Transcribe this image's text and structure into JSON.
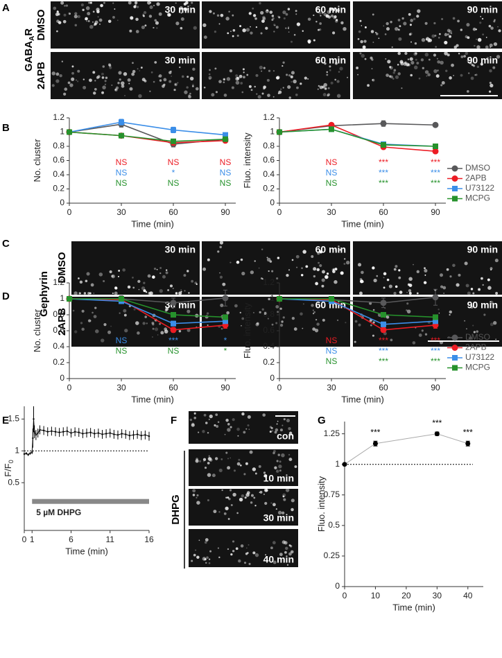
{
  "panel_letters": [
    "A",
    "B",
    "C",
    "D",
    "E",
    "F",
    "G"
  ],
  "figure_a": {
    "marker_label": {
      "main": "GABA",
      "sub": "A",
      "tail": "R"
    },
    "rows": [
      {
        "condition": "DMSO",
        "images": [
          "30 min",
          "60 min",
          "90 min"
        ]
      },
      {
        "condition": "2APB",
        "images": [
          "30 min",
          "60 min",
          "90 min"
        ]
      }
    ]
  },
  "figure_c": {
    "marker_label": "Gephyrin",
    "rows": [
      {
        "condition": "DMSO",
        "images": [
          "30 min",
          "60 min",
          "90 min"
        ]
      },
      {
        "condition": "2APB",
        "images": [
          "30 min",
          "60 min",
          "90 min"
        ]
      }
    ]
  },
  "figure_f": {
    "group_label": "DHPG",
    "images": [
      "con",
      "10 min",
      "30 min",
      "40 min"
    ]
  },
  "chart_data": [
    {
      "type": "line",
      "xlabel": "Time (min)",
      "ylabel": "No. cluster",
      "legend": false,
      "x": [
        0,
        30,
        60,
        90
      ],
      "xlim": [
        0,
        96
      ],
      "xticks": [
        0,
        30,
        60,
        90
      ],
      "ylim": [
        0,
        1.2
      ],
      "yticks": [
        0,
        0.2,
        0.4,
        0.6,
        0.8,
        1,
        1.2
      ],
      "series": [
        {
          "name": "DMSO",
          "color": "#58585a",
          "marker": "circle",
          "values": [
            1,
            1.11,
            0.83,
            0.9
          ],
          "errors": [
            0.02,
            0.04,
            0.04,
            0.03
          ]
        },
        {
          "name": "2APB",
          "color": "#ec1c24",
          "marker": "circle",
          "values": [
            1,
            0.95,
            0.85,
            0.88
          ],
          "errors": [
            0.02,
            0.03,
            0.03,
            0.02
          ],
          "significance": [
            null,
            "NS",
            "NS",
            "NS"
          ]
        },
        {
          "name": "U73122",
          "color": "#3b8ee8",
          "marker": "square",
          "values": [
            1,
            1.14,
            1.03,
            0.96
          ],
          "errors": [
            0.02,
            0.04,
            0.04,
            0.02
          ],
          "significance": [
            null,
            "NS",
            "*",
            "NS"
          ]
        },
        {
          "name": "MCPG",
          "color": "#26922c",
          "marker": "square",
          "values": [
            1,
            0.95,
            0.87,
            0.9
          ],
          "errors": [
            0.02,
            0.03,
            0.03,
            0.02
          ],
          "significance": [
            null,
            "NS",
            "NS",
            "NS"
          ]
        }
      ]
    },
    {
      "type": "line",
      "xlabel": "Time (min)",
      "ylabel": "Fluo. intensity",
      "legend": true,
      "x": [
        0,
        30,
        60,
        90
      ],
      "xlim": [
        0,
        96
      ],
      "xticks": [
        0,
        30,
        60,
        90
      ],
      "ylim": [
        0,
        1.2
      ],
      "yticks": [
        0,
        0.2,
        0.4,
        0.6,
        0.8,
        1,
        1.2
      ],
      "series": [
        {
          "name": "DMSO",
          "color": "#58585a",
          "marker": "circle",
          "values": [
            1,
            1.09,
            1.12,
            1.1
          ],
          "errors": [
            0.02,
            0.02,
            0.04,
            0.02
          ]
        },
        {
          "name": "2APB",
          "color": "#ec1c24",
          "marker": "circle",
          "values": [
            1,
            1.1,
            0.79,
            0.73
          ],
          "errors": [
            0.02,
            0.02,
            0.02,
            0.02
          ],
          "significance": [
            null,
            "NS",
            "***",
            "***"
          ]
        },
        {
          "name": "U73122",
          "color": "#3b8ee8",
          "marker": "square",
          "values": [
            1,
            1.04,
            0.83,
            0.8
          ],
          "errors": [
            0.02,
            0.02,
            0.02,
            0.02
          ],
          "significance": [
            null,
            "NS",
            "***",
            "***"
          ]
        },
        {
          "name": "MCPG",
          "color": "#26922c",
          "marker": "square",
          "values": [
            1,
            1.04,
            0.82,
            0.8
          ],
          "errors": [
            0.02,
            0.02,
            0.02,
            0.02
          ],
          "significance": [
            null,
            "NS",
            "***",
            "***"
          ]
        }
      ]
    },
    {
      "type": "line",
      "xlabel": "Time (min)",
      "ylabel": "No. cluster",
      "legend": false,
      "x": [
        0,
        30,
        60,
        90
      ],
      "xlim": [
        0,
        96
      ],
      "xticks": [
        0,
        30,
        60,
        90
      ],
      "ylim": [
        0,
        1.2
      ],
      "yticks": [
        0,
        0.2,
        0.4,
        0.6,
        0.8,
        1,
        1.2
      ],
      "series": [
        {
          "name": "DMSO",
          "color": "#58585a",
          "marker": "circle",
          "values": [
            1,
            1,
            0.95,
            1.01
          ],
          "errors": [
            0.02,
            0.04,
            0.06,
            0.1
          ]
        },
        {
          "name": "2APB",
          "color": "#ec1c24",
          "marker": "circle",
          "values": [
            1,
            0.99,
            0.61,
            0.67
          ],
          "errors": [
            0.02,
            0.03,
            0.03,
            0.04
          ]
        },
        {
          "name": "U73122",
          "color": "#3b8ee8",
          "marker": "square",
          "values": [
            1,
            0.97,
            0.69,
            0.72
          ],
          "errors": [
            0.02,
            0.03,
            0.03,
            0.03
          ],
          "significance": [
            null,
            "NS",
            "***",
            "*"
          ]
        },
        {
          "name": "MCPG",
          "color": "#26922c",
          "marker": "square",
          "values": [
            1,
            1,
            0.8,
            0.77
          ],
          "errors": [
            0.02,
            0.03,
            0.03,
            0.03
          ],
          "significance": [
            null,
            "NS",
            "NS",
            "*"
          ]
        }
      ]
    },
    {
      "type": "line",
      "xlabel": "Time (min)",
      "ylabel": "Fluo. intensity",
      "legend": true,
      "x": [
        0,
        30,
        60,
        90
      ],
      "xlim": [
        0,
        96
      ],
      "xticks": [
        0,
        30,
        60,
        90
      ],
      "ylim": [
        0,
        1.2
      ],
      "yticks": [
        0,
        0.2,
        0.4,
        0.6,
        0.8,
        1,
        1.2
      ],
      "series": [
        {
          "name": "DMSO",
          "color": "#58585a",
          "marker": "circle",
          "values": [
            1,
            0.99,
            0.95,
            1.02
          ],
          "errors": [
            0.02,
            0.04,
            0.06,
            0.1
          ]
        },
        {
          "name": "2APB",
          "color": "#ec1c24",
          "marker": "circle",
          "values": [
            1,
            0.99,
            0.61,
            0.67
          ],
          "errors": [
            0.02,
            0.03,
            0.03,
            0.04
          ],
          "significance": [
            null,
            "NS",
            "***",
            "***"
          ]
        },
        {
          "name": "U73122",
          "color": "#3b8ee8",
          "marker": "square",
          "values": [
            1,
            0.97,
            0.68,
            0.72
          ],
          "errors": [
            0.02,
            0.03,
            0.03,
            0.03
          ],
          "significance": [
            null,
            "NS",
            "***",
            "***"
          ]
        },
        {
          "name": "MCPG",
          "color": "#26922c",
          "marker": "square",
          "values": [
            1,
            1,
            0.8,
            0.77
          ],
          "errors": [
            0.02,
            0.03,
            0.03,
            0.03
          ],
          "significance": [
            null,
            "NS",
            "***",
            "***"
          ]
        }
      ]
    },
    {
      "type": "line",
      "xlabel": "Time (min)",
      "ylabel": "F/F",
      "ylabel_sub": "0",
      "x": [
        0,
        0.25,
        0.5,
        0.75,
        1,
        1.1,
        1.2,
        1.3,
        1.5,
        1.75,
        2,
        2.5,
        3,
        3.5,
        4,
        4.5,
        5,
        5.5,
        6,
        6.5,
        7,
        7.5,
        8,
        8.5,
        9,
        9.5,
        10,
        10.5,
        11,
        11.5,
        12,
        12.5,
        13,
        13.5,
        14,
        14.5,
        15,
        15.5,
        16
      ],
      "values": [
        0.95,
        0.96,
        0.94,
        0.96,
        0.98,
        1.2,
        1.5,
        1.3,
        1.25,
        1.28,
        1.33,
        1.32,
        1.3,
        1.31,
        1.3,
        1.29,
        1.3,
        1.31,
        1.28,
        1.3,
        1.29,
        1.27,
        1.28,
        1.29,
        1.27,
        1.28,
        1.26,
        1.27,
        1.28,
        1.26,
        1.25,
        1.27,
        1.26,
        1.24,
        1.25,
        1.26,
        1.24,
        1.25,
        1.23
      ],
      "errors": [
        0.02,
        0.02,
        0.02,
        0.02,
        0.03,
        0.15,
        0.2,
        0.1,
        0.08,
        0.07,
        0.07,
        0.07,
        0.07,
        0.07,
        0.07,
        0.07,
        0.07,
        0.07,
        0.07,
        0.07,
        0.07,
        0.07,
        0.07,
        0.07,
        0.07,
        0.07,
        0.07,
        0.07,
        0.07,
        0.07,
        0.07,
        0.07,
        0.07,
        0.07,
        0.07,
        0.07,
        0.07,
        0.07,
        0.07
      ],
      "color": "#000000",
      "hline": 1,
      "xlim": [
        0,
        16
      ],
      "xticks": [
        0,
        1,
        6,
        11,
        16
      ],
      "ylim": [
        -0.25,
        1.7
      ],
      "yticks": [
        0.5,
        1,
        1.5
      ],
      "annotation_bar": {
        "label": "5 µM DHPG",
        "start": 1,
        "end": 16
      }
    },
    {
      "type": "line",
      "xlabel": "Time (min)",
      "ylabel": "Fluo. intensity",
      "x": [
        0,
        10,
        30,
        40
      ],
      "values": [
        1,
        1.17,
        1.25,
        1.17
      ],
      "errors": [
        0,
        0.02,
        0.015,
        0.02
      ],
      "significance": [
        null,
        "***",
        "***",
        "***"
      ],
      "color": "#000000",
      "line_color": "#aaaaaa",
      "hline": 1,
      "xlim": [
        0,
        45
      ],
      "xticks": [
        0,
        10,
        20,
        30,
        40
      ],
      "ylim": [
        0,
        1.35
      ],
      "yticks": [
        0,
        0.25,
        0.5,
        0.75,
        1,
        1.25
      ]
    }
  ]
}
